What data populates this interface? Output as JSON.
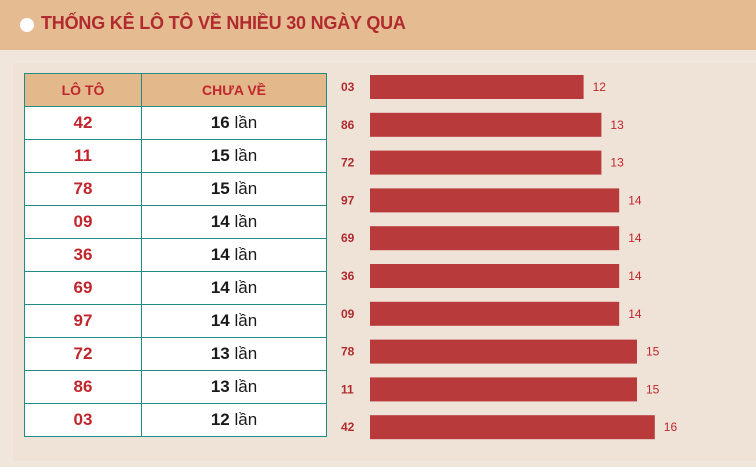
{
  "header": {
    "title": "THỐNG KÊ LÔ TÔ VỀ NHIỀU 30 NGÀY QUA"
  },
  "table": {
    "col_number": "LÔ TÔ",
    "col_count": "CHƯA VỀ",
    "unit": "lần",
    "rows": [
      {
        "number": "42",
        "count": "16"
      },
      {
        "number": "11",
        "count": "15"
      },
      {
        "number": "78",
        "count": "15"
      },
      {
        "number": "09",
        "count": "14"
      },
      {
        "number": "36",
        "count": "14"
      },
      {
        "number": "69",
        "count": "14"
      },
      {
        "number": "97",
        "count": "14"
      },
      {
        "number": "72",
        "count": "13"
      },
      {
        "number": "86",
        "count": "13"
      },
      {
        "number": "03",
        "count": "12"
      }
    ]
  },
  "colors": {
    "bar": "#b83a3b",
    "accent": "#c0262d",
    "header_bg": "#e5bb92"
  },
  "chart_data": {
    "type": "bar",
    "orientation": "horizontal",
    "categories": [
      "03",
      "86",
      "72",
      "97",
      "69",
      "36",
      "09",
      "78",
      "11",
      "42"
    ],
    "values": [
      12,
      13,
      13,
      14,
      14,
      14,
      14,
      15,
      15,
      16
    ],
    "title": "",
    "xlabel": "",
    "ylabel": "",
    "xlim": [
      0,
      16
    ]
  }
}
